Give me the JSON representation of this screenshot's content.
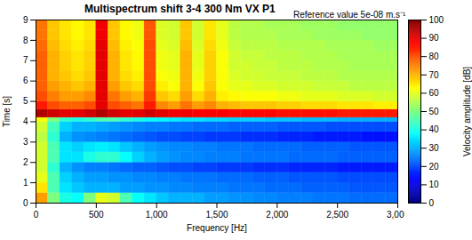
{
  "chart_data": {
    "type": "heatmap",
    "title": "Multispectrum shift 3-4 300 Nm VX P1",
    "annotation": "Reference value 5e-08 m.s⁻¹",
    "x_label": "Frequency [Hz]",
    "y_label": "Time [s]",
    "xlim": [
      0,
      3000
    ],
    "xticks": [
      0,
      500,
      1000,
      1500,
      2000,
      2500,
      3000
    ],
    "ylim": [
      0,
      9
    ],
    "yticks": [
      0,
      1,
      2,
      3,
      4,
      5,
      6,
      7,
      8,
      9
    ],
    "x_edges": [
      0,
      100,
      200,
      300,
      400,
      500,
      600,
      700,
      800,
      900,
      1000,
      1100,
      1200,
      1300,
      1400,
      1500,
      1600,
      1700,
      1800,
      1900,
      2000,
      2100,
      2200,
      2300,
      2400,
      2500,
      2600,
      2700,
      2800,
      2900,
      3000
    ],
    "y_edges": [
      0,
      0.5,
      1,
      1.5,
      2,
      2.5,
      3,
      3.5,
      4,
      4.2,
      4.6,
      5,
      5.5,
      6,
      6.5,
      7,
      7.5,
      8,
      8.5,
      9
    ],
    "cells": [
      [
        72,
        50,
        40,
        38,
        50,
        60,
        58,
        45,
        38,
        35,
        32,
        30,
        30,
        30,
        28,
        28,
        27,
        27,
        26,
        26,
        25,
        25,
        25,
        24,
        24,
        24,
        23,
        23,
        23,
        23
      ],
      [
        65,
        45,
        35,
        32,
        30,
        30,
        30,
        28,
        28,
        27,
        27,
        26,
        26,
        25,
        25,
        25,
        24,
        24,
        24,
        23,
        23,
        23,
        22,
        22,
        22,
        22,
        21,
        21,
        21,
        21
      ],
      [
        60,
        45,
        33,
        30,
        28,
        28,
        27,
        27,
        26,
        26,
        25,
        25,
        24,
        24,
        24,
        23,
        23,
        23,
        22,
        22,
        22,
        21,
        21,
        21,
        21,
        20,
        20,
        20,
        20,
        20
      ],
      [
        58,
        42,
        30,
        27,
        25,
        25,
        24,
        23,
        22,
        22,
        21,
        20,
        20,
        19,
        19,
        18,
        18,
        18,
        17,
        17,
        17,
        16,
        16,
        16,
        16,
        15,
        15,
        15,
        15,
        15
      ],
      [
        58,
        45,
        35,
        35,
        40,
        42,
        42,
        38,
        33,
        30,
        28,
        27,
        26,
        26,
        25,
        25,
        25,
        24,
        24,
        24,
        24,
        23,
        23,
        23,
        23,
        22,
        22,
        22,
        22,
        22
      ],
      [
        58,
        45,
        35,
        33,
        35,
        36,
        35,
        32,
        30,
        28,
        27,
        26,
        26,
        25,
        25,
        24,
        24,
        24,
        23,
        23,
        23,
        23,
        22,
        22,
        22,
        22,
        21,
        21,
        21,
        21
      ],
      [
        56,
        42,
        30,
        27,
        26,
        25,
        24,
        23,
        22,
        21,
        20,
        20,
        19,
        19,
        18,
        18,
        18,
        17,
        17,
        17,
        16,
        16,
        16,
        15,
        15,
        15,
        15,
        14,
        14,
        14
      ],
      [
        58,
        44,
        33,
        30,
        30,
        29,
        28,
        27,
        26,
        25,
        25,
        24,
        24,
        23,
        23,
        23,
        22,
        22,
        22,
        22,
        21,
        21,
        21,
        21,
        20,
        20,
        20,
        20,
        20,
        20
      ],
      [
        62,
        50,
        42,
        40,
        42,
        45,
        45,
        42,
        40,
        38,
        37,
        36,
        35,
        35,
        34,
        34,
        33,
        33,
        33,
        32,
        32,
        32,
        31,
        31,
        31,
        30,
        30,
        30,
        30,
        30
      ],
      [
        95,
        92,
        90,
        90,
        92,
        95,
        92,
        90,
        90,
        92,
        90,
        89,
        89,
        88,
        88,
        88,
        87,
        87,
        87,
        87,
        86,
        86,
        86,
        86,
        86,
        85,
        85,
        85,
        85,
        85
      ],
      [
        85,
        80,
        78,
        78,
        80,
        90,
        80,
        78,
        76,
        85,
        74,
        72,
        76,
        72,
        74,
        70,
        69,
        68,
        68,
        68,
        67,
        67,
        66,
        66,
        66,
        65,
        65,
        65,
        64,
        64
      ],
      [
        80,
        75,
        72,
        72,
        74,
        90,
        76,
        72,
        70,
        82,
        68,
        66,
        72,
        66,
        70,
        64,
        63,
        62,
        62,
        62,
        61,
        61,
        60,
        60,
        60,
        59,
        59,
        59,
        58,
        58
      ],
      [
        78,
        72,
        70,
        68,
        70,
        90,
        72,
        68,
        66,
        80,
        64,
        62,
        70,
        62,
        68,
        62,
        60,
        60,
        59,
        59,
        58,
        58,
        58,
        57,
        57,
        57,
        56,
        56,
        56,
        56
      ],
      [
        78,
        70,
        68,
        66,
        68,
        90,
        70,
        66,
        64,
        80,
        62,
        61,
        70,
        61,
        67,
        62,
        59,
        58,
        58,
        57,
        57,
        57,
        56,
        56,
        56,
        55,
        55,
        55,
        55,
        55
      ],
      [
        78,
        70,
        67,
        65,
        67,
        90,
        70,
        65,
        63,
        80,
        61,
        60,
        70,
        60,
        67,
        62,
        58,
        58,
        57,
        57,
        56,
        56,
        56,
        55,
        55,
        55,
        54,
        54,
        54,
        54
      ],
      [
        78,
        70,
        67,
        65,
        67,
        90,
        70,
        65,
        63,
        80,
        61,
        60,
        70,
        60,
        67,
        62,
        58,
        57,
        57,
        56,
        56,
        56,
        55,
        55,
        55,
        54,
        54,
        54,
        54,
        54
      ],
      [
        77,
        69,
        66,
        64,
        66,
        90,
        69,
        64,
        62,
        80,
        60,
        59,
        69,
        59,
        66,
        61,
        57,
        56,
        56,
        56,
        55,
        55,
        55,
        55,
        54,
        54,
        54,
        54,
        53,
        53
      ],
      [
        76,
        68,
        65,
        63,
        65,
        89,
        68,
        63,
        61,
        79,
        59,
        58,
        68,
        58,
        65,
        60,
        56,
        55,
        55,
        55,
        54,
        54,
        54,
        53,
        53,
        53,
        53,
        52,
        52,
        52
      ],
      [
        76,
        68,
        65,
        63,
        65,
        89,
        68,
        63,
        61,
        79,
        59,
        58,
        68,
        58,
        65,
        60,
        56,
        55,
        55,
        54,
        54,
        54,
        53,
        53,
        53,
        52,
        52,
        52,
        52,
        52
      ]
    ],
    "colorbar_label": "Velocity amplitude [dB]",
    "colorbar_range": [
      0,
      100
    ],
    "colorbar_ticks": [
      0,
      10,
      20,
      30,
      40,
      50,
      60,
      70,
      80,
      90,
      100
    ]
  }
}
